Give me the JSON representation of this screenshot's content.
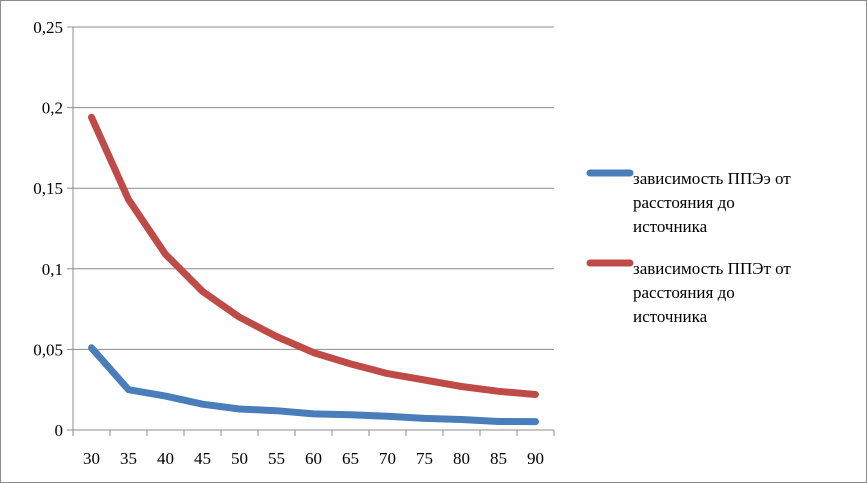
{
  "chart_data": {
    "type": "line",
    "title": "",
    "xlabel": "",
    "ylabel": "",
    "categories": [
      "30",
      "35",
      "40",
      "45",
      "50",
      "55",
      "60",
      "65",
      "70",
      "75",
      "80",
      "85",
      "90"
    ],
    "ylim": [
      0,
      0.25
    ],
    "yticks": [
      {
        "value": 0,
        "label": "0"
      },
      {
        "value": 0.05,
        "label": "0,05"
      },
      {
        "value": 0.1,
        "label": "0,1"
      },
      {
        "value": 0.15,
        "label": "0,15"
      },
      {
        "value": 0.2,
        "label": "0,2"
      },
      {
        "value": 0.25,
        "label": "0,25"
      }
    ],
    "grid": true,
    "legend_position": "right",
    "series": [
      {
        "name": "зависимость ППЭэ от расстояния до источника",
        "legend_lines": [
          "зависимость ППЭэ от",
          "расстояния до",
          "источника"
        ],
        "color": "#4a7ebb",
        "values": [
          0.051,
          0.025,
          0.021,
          0.016,
          0.013,
          0.012,
          0.01,
          0.0095,
          0.0085,
          0.0072,
          0.0065,
          0.0053,
          0.0052
        ]
      },
      {
        "name": "зависимость ППЭт от расстояния до источника",
        "legend_lines": [
          "зависимость ППЭт от",
          "расстояния до",
          "источника"
        ],
        "color": "#be4b48",
        "values": [
          0.194,
          0.143,
          0.109,
          0.086,
          0.07,
          0.058,
          0.048,
          0.041,
          0.035,
          0.031,
          0.027,
          0.024,
          0.022
        ]
      }
    ]
  }
}
